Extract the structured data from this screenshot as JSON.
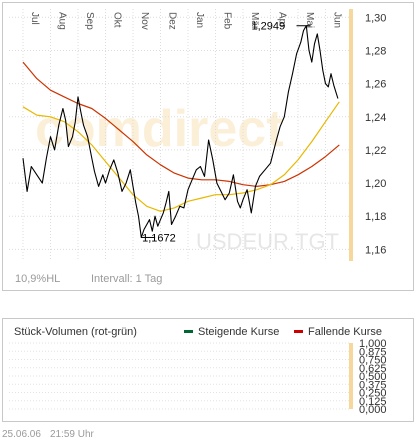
{
  "chart_data": [
    {
      "type": "line",
      "title": "",
      "watermark": "comdirect",
      "instrument_label": "USDEUR.TGT",
      "x_ticks": [
        "Jul",
        "Aug",
        "Sep",
        "Okt",
        "Nov",
        "Dez",
        "Jan",
        "Feb",
        "Mär",
        "Apr",
        "Mai",
        "Jun"
      ],
      "y_ticks": [
        "1,30",
        "1,28",
        "1,26",
        "1,24",
        "1,22",
        "1,20",
        "1,18",
        "1,16"
      ],
      "ylim": [
        1.153,
        1.305
      ],
      "grid": true,
      "annotations": [
        {
          "label": "1,1672",
          "x": 4.55,
          "y": 1.1672
        },
        {
          "label": "1,2949",
          "x": 10.2,
          "y": 1.2949
        }
      ],
      "series": [
        {
          "name": "",
          "color": "#000000",
          "x": [
            0.0,
            0.15,
            0.3,
            0.5,
            0.7,
            0.85,
            1.0,
            1.15,
            1.3,
            1.45,
            1.55,
            1.65,
            1.8,
            1.9,
            2.0,
            2.1,
            2.2,
            2.35,
            2.5,
            2.6,
            2.75,
            2.9,
            3.0,
            3.15,
            3.3,
            3.45,
            3.6,
            3.75,
            3.9,
            4.0,
            4.1,
            4.2,
            4.3,
            4.4,
            4.5,
            4.6,
            4.7,
            4.8,
            4.9,
            5.0,
            5.1,
            5.2,
            5.3,
            5.4,
            5.55,
            5.7,
            5.85,
            6.0,
            6.15,
            6.3,
            6.45,
            6.6,
            6.75,
            6.9,
            7.05,
            7.2,
            7.35,
            7.5,
            7.65,
            7.8,
            7.9,
            8.0,
            8.15,
            8.3,
            8.45,
            8.6,
            8.8,
            9.0,
            9.2,
            9.35,
            9.5,
            9.65,
            9.8,
            9.95,
            10.1,
            10.2,
            10.3,
            10.4,
            10.5,
            10.6,
            10.7,
            10.8,
            10.9,
            11.0,
            11.1,
            11.2,
            11.3,
            11.45
          ],
          "y": [
            1.215,
            1.195,
            1.21,
            1.205,
            1.2,
            1.215,
            1.228,
            1.22,
            1.235,
            1.245,
            1.238,
            1.222,
            1.228,
            1.237,
            1.252,
            1.243,
            1.235,
            1.228,
            1.215,
            1.207,
            1.198,
            1.205,
            1.2,
            1.208,
            1.214,
            1.206,
            1.195,
            1.2,
            1.208,
            1.198,
            1.188,
            1.18,
            1.1672,
            1.172,
            1.175,
            1.178,
            1.171,
            1.18,
            1.174,
            1.178,
            1.182,
            1.188,
            1.195,
            1.175,
            1.18,
            1.186,
            1.185,
            1.196,
            1.202,
            1.208,
            1.21,
            1.204,
            1.226,
            1.214,
            1.2,
            1.195,
            1.19,
            1.194,
            1.205,
            1.189,
            1.185,
            1.19,
            1.196,
            1.182,
            1.198,
            1.204,
            1.208,
            1.212,
            1.225,
            1.234,
            1.24,
            1.255,
            1.266,
            1.278,
            1.285,
            1.292,
            1.2949,
            1.28,
            1.273,
            1.284,
            1.29,
            1.28,
            1.268,
            1.26,
            1.258,
            1.266,
            1.259,
            1.251
          ]
        },
        {
          "name": "",
          "color": "#cc3300",
          "x": [
            0.0,
            0.5,
            1.0,
            1.5,
            2.0,
            2.5,
            3.0,
            3.5,
            4.0,
            4.5,
            5.0,
            5.5,
            6.0,
            6.5,
            7.0,
            7.5,
            8.0,
            8.5,
            9.0,
            9.5,
            10.0,
            10.5,
            11.0,
            11.5
          ],
          "y": [
            1.273,
            1.263,
            1.256,
            1.252,
            1.248,
            1.245,
            1.239,
            1.232,
            1.225,
            1.217,
            1.211,
            1.206,
            1.203,
            1.202,
            1.202,
            1.201,
            1.199,
            1.198,
            1.199,
            1.201,
            1.205,
            1.21,
            1.216,
            1.223
          ]
        },
        {
          "name": "",
          "color": "#e8b800",
          "x": [
            0.0,
            0.5,
            1.0,
            1.5,
            2.0,
            2.5,
            3.0,
            3.5,
            4.0,
            4.5,
            5.0,
            5.5,
            6.0,
            6.5,
            7.0,
            7.5,
            8.0,
            8.5,
            9.0,
            9.5,
            10.0,
            10.5,
            11.0,
            11.5
          ],
          "y": [
            1.246,
            1.241,
            1.24,
            1.237,
            1.231,
            1.223,
            1.213,
            1.203,
            1.193,
            1.186,
            1.183,
            1.185,
            1.189,
            1.191,
            1.193,
            1.193,
            1.194,
            1.196,
            1.199,
            1.205,
            1.214,
            1.225,
            1.237,
            1.249
          ]
        }
      ]
    },
    {
      "type": "bar",
      "title": "Stück-Volumen (rot-grün)",
      "y_ticks": [
        "1,000",
        "0,875",
        "0,750",
        "0,625",
        "0,500",
        "0,375",
        "0,250",
        "0,125",
        "0,000"
      ],
      "ylim": [
        0,
        1
      ],
      "series": [
        {
          "name": "Steigende Kurse",
          "color": "#006633",
          "values": []
        },
        {
          "name": "Fallende Kurse",
          "color": "#cc0000",
          "values": []
        }
      ]
    }
  ],
  "info": {
    "hl_label": "10,9%HL",
    "interval_label": "Intervall: 1 Tag"
  },
  "footer": {
    "date": "25.06.06",
    "time": "21:59 Uhr"
  }
}
